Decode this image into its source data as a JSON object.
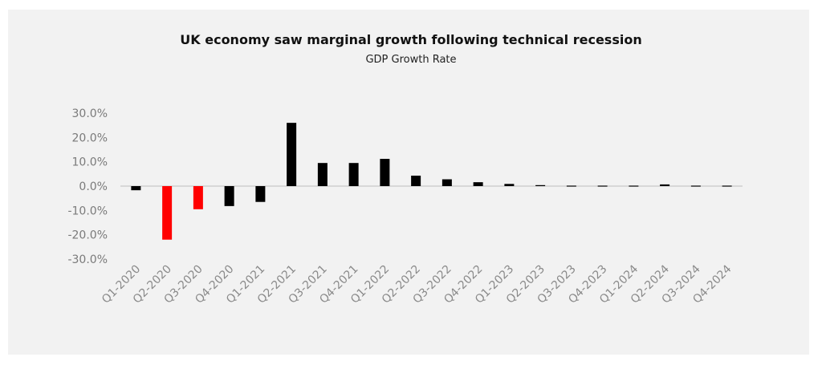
{
  "chart_data": {
    "type": "bar",
    "title": "UK economy saw marginal growth following technical recession",
    "subtitle": "GDP Growth Rate",
    "xlabel": "",
    "ylabel": "",
    "categories": [
      "Q1-2020",
      "Q2-2020",
      "Q3-2020",
      "Q4-2020",
      "Q1-2021",
      "Q2-2021",
      "Q3-2021",
      "Q4-2021",
      "Q1-2022",
      "Q2-2022",
      "Q3-2022",
      "Q4-2022",
      "Q1-2023",
      "Q2-2023",
      "Q3-2023",
      "Q4-2023",
      "Q1-2024",
      "Q2-2024",
      "Q3-2024",
      "Q4-2024"
    ],
    "values": [
      -1.7,
      -22.0,
      -9.5,
      -8.2,
      -6.5,
      26.0,
      9.5,
      9.5,
      11.2,
      4.3,
      2.8,
      1.6,
      0.9,
      0.4,
      0.3,
      -0.3,
      0.3,
      0.7,
      0.1,
      0.3
    ],
    "ylim": [
      -30,
      30
    ],
    "yticks": [
      30,
      20,
      10,
      0,
      -10,
      -20,
      -30
    ],
    "ytick_labels": [
      "30.0%",
      "20.0%",
      "10.0%",
      "0.0%",
      "-10.0%",
      "-20.0%",
      "-30.0%"
    ],
    "grid": false,
    "legend": "none",
    "colors": {
      "default": "#000000",
      "highlight": "#ff0000",
      "zero_line": "#bfbfbf",
      "background": "#f2f2f2"
    },
    "highlighted_categories": [
      "Q2-2020",
      "Q3-2020"
    ]
  }
}
